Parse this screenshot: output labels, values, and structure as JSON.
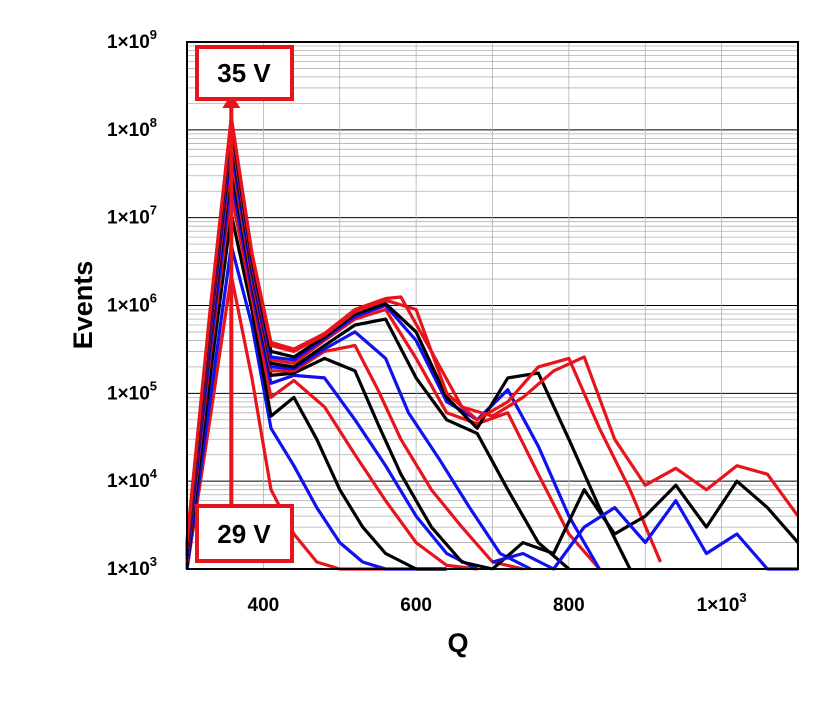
{
  "chart_data": {
    "type": "line",
    "xlabel": "Q",
    "ylabel": "Events",
    "xlim": [
      300,
      1100
    ],
    "ylim": [
      1000,
      1000000000
    ],
    "yscale": "log",
    "grid": true,
    "x_ticks": [
      {
        "value": 400,
        "label": "400"
      },
      {
        "value": 600,
        "label": "600"
      },
      {
        "value": 800,
        "label": "800"
      },
      {
        "value": 1000,
        "label": "1×10",
        "exp": "3"
      }
    ],
    "y_ticks": [
      {
        "value": 1000,
        "label": "1×10",
        "exp": "3"
      },
      {
        "value": 10000,
        "label": "1×10",
        "exp": "4"
      },
      {
        "value": 100000,
        "label": "1×10",
        "exp": "5"
      },
      {
        "value": 1000000,
        "label": "1×10",
        "exp": "6"
      },
      {
        "value": 10000000,
        "label": "1×10",
        "exp": "7"
      },
      {
        "value": 100000000,
        "label": "1×10",
        "exp": "8"
      },
      {
        "value": 1000000000,
        "label": "1×10",
        "exp": "9"
      }
    ],
    "annotations": {
      "top_label": "35 V",
      "bottom_label": "29 V",
      "arrow_x": 358
    },
    "colors": {
      "red": "#e8141b",
      "black": "#000000",
      "blue": "#1010f0"
    },
    "series": [
      {
        "color": "red",
        "x": [
          300,
          330,
          358,
          385,
          410,
          440,
          470,
          500,
          530,
          560
        ],
        "y": [
          1000,
          50000,
          2200000,
          150000,
          8000,
          2500,
          1200,
          1000,
          1000,
          1000
        ]
      },
      {
        "color": "blue",
        "x": [
          300,
          330,
          358,
          385,
          410,
          440,
          470,
          500,
          530,
          560,
          600,
          640
        ],
        "y": [
          1000,
          80000,
          4800000,
          600000,
          40000,
          15000,
          5000,
          2000,
          1200,
          1000,
          1000,
          1000
        ]
      },
      {
        "color": "black",
        "x": [
          300,
          330,
          358,
          385,
          410,
          440,
          470,
          500,
          530,
          560,
          600,
          640
        ],
        "y": [
          1100,
          150000,
          11000000,
          900000,
          55000,
          90000,
          30000,
          8000,
          3000,
          1500,
          1000,
          1000
        ]
      },
      {
        "color": "red",
        "x": [
          300,
          330,
          358,
          385,
          410,
          440,
          480,
          520,
          560,
          600,
          640,
          680
        ],
        "y": [
          1200,
          250000,
          19000000,
          1200000,
          90000,
          140000,
          70000,
          20000,
          6000,
          2000,
          1100,
          1000
        ]
      },
      {
        "color": "blue",
        "x": [
          300,
          330,
          358,
          385,
          410,
          440,
          480,
          520,
          560,
          600,
          640,
          680
        ],
        "y": [
          1300,
          300000,
          28000000,
          1500000,
          130000,
          160000,
          150000,
          50000,
          15000,
          4000,
          1500,
          1000
        ]
      },
      {
        "color": "black",
        "x": [
          300,
          330,
          358,
          385,
          410,
          440,
          480,
          520,
          550,
          580,
          620,
          660,
          700
        ],
        "y": [
          1400,
          400000,
          38000000,
          1800000,
          160000,
          170000,
          250000,
          180000,
          45000,
          12000,
          3000,
          1200,
          1000
        ]
      },
      {
        "color": "red",
        "x": [
          300,
          330,
          358,
          385,
          410,
          440,
          480,
          520,
          550,
          580,
          620,
          660,
          700,
          740
        ],
        "y": [
          1500,
          450000,
          50000000,
          2000000,
          180000,
          180000,
          300000,
          350000,
          110000,
          30000,
          8000,
          3000,
          1200,
          1000
        ]
      },
      {
        "color": "blue",
        "x": [
          300,
          330,
          358,
          385,
          410,
          440,
          480,
          520,
          560,
          590,
          630,
          670,
          710,
          750
        ],
        "y": [
          1500,
          500000,
          62000000,
          2300000,
          200000,
          190000,
          320000,
          500000,
          250000,
          60000,
          18000,
          5000,
          1500,
          1000
        ]
      },
      {
        "color": "black",
        "x": [
          300,
          330,
          358,
          385,
          410,
          440,
          480,
          520,
          560,
          600,
          640,
          680,
          720,
          760,
          800
        ],
        "y": [
          1600,
          550000,
          78000000,
          2600000,
          220000,
          200000,
          350000,
          600000,
          700000,
          150000,
          50000,
          35000,
          8000,
          2000,
          1000
        ]
      },
      {
        "color": "red",
        "x": [
          300,
          330,
          358,
          385,
          410,
          440,
          480,
          520,
          560,
          600,
          640,
          680,
          720,
          760,
          800,
          840
        ],
        "y": [
          1700,
          600000,
          95000000,
          2900000,
          240000,
          220000,
          400000,
          700000,
          900000,
          250000,
          60000,
          45000,
          60000,
          12000,
          2500,
          1000
        ]
      },
      {
        "color": "blue",
        "x": [
          300,
          330,
          358,
          385,
          410,
          440,
          480,
          520,
          560,
          600,
          640,
          680,
          720,
          760,
          800,
          840
        ],
        "y": [
          1800,
          650000,
          110000000,
          3200000,
          260000,
          240000,
          420000,
          750000,
          1000000,
          400000,
          80000,
          50000,
          110000,
          25000,
          4000,
          1000
        ]
      },
      {
        "color": "black",
        "x": [
          300,
          330,
          358,
          385,
          410,
          440,
          480,
          520,
          560,
          600,
          640,
          680,
          720,
          760,
          800,
          840,
          880
        ],
        "y": [
          1900,
          700000,
          120000000,
          3400000,
          300000,
          260000,
          440000,
          800000,
          1050000,
          500000,
          90000,
          40000,
          150000,
          170000,
          30000,
          5000,
          1000
        ]
      },
      {
        "color": "red",
        "x": [
          300,
          330,
          358,
          385,
          410,
          440,
          480,
          520,
          560,
          600,
          640,
          680,
          720,
          760,
          800,
          840,
          880,
          920
        ],
        "y": [
          2000,
          800000,
          135000000,
          3800000,
          350000,
          300000,
          460000,
          850000,
          1150000,
          900000,
          100000,
          50000,
          80000,
          200000,
          250000,
          40000,
          8000,
          1200
        ]
      },
      {
        "color": "red",
        "x": [
          300,
          330,
          358,
          385,
          410,
          440,
          480,
          520,
          560,
          580,
          620,
          660,
          700,
          740,
          780,
          820,
          860,
          900,
          940,
          980,
          1020,
          1060,
          1100
        ],
        "y": [
          2100,
          850000,
          140000000,
          4000000,
          380000,
          320000,
          480000,
          900000,
          1200000,
          1250000,
          300000,
          70000,
          55000,
          90000,
          180000,
          260000,
          30000,
          9000,
          14000,
          8000,
          15000,
          12000,
          4000
        ]
      },
      {
        "color": "black",
        "x": [
          700,
          740,
          780,
          820,
          860,
          900,
          940,
          980,
          1020,
          1060,
          1100
        ],
        "y": [
          1000,
          2000,
          1500,
          8000,
          2500,
          4000,
          9000,
          3000,
          10000,
          5000,
          2000
        ]
      },
      {
        "color": "blue",
        "x": [
          700,
          740,
          780,
          820,
          860,
          900,
          940,
          980,
          1020,
          1060,
          1100
        ],
        "y": [
          1200,
          1500,
          1000,
          3000,
          5000,
          2000,
          6000,
          1500,
          2500,
          1000,
          1000
        ]
      }
    ]
  }
}
